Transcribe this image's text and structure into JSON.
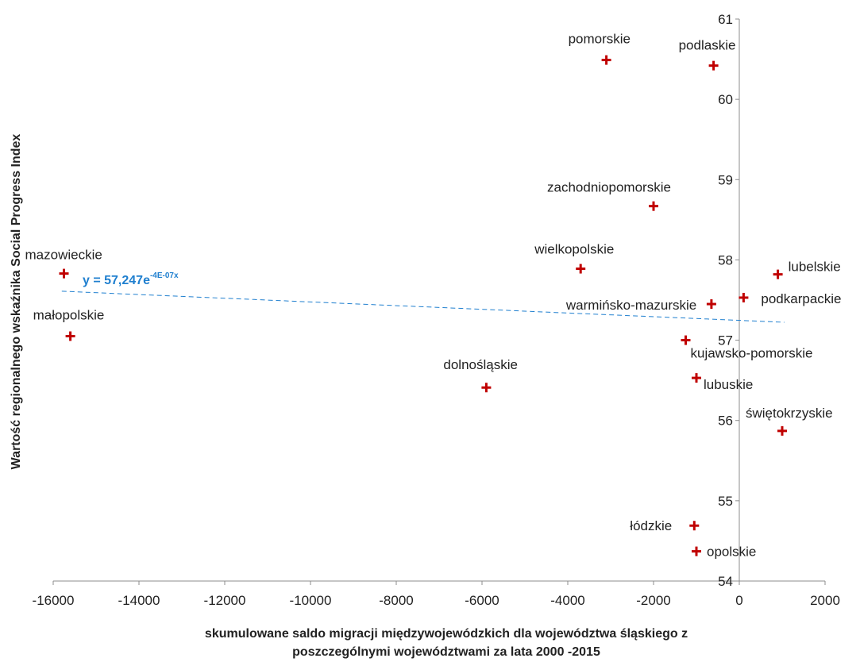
{
  "chart_data": {
    "type": "scatter",
    "title": "",
    "xlabel_lines": [
      "skumulowane saldo migracji międzywojewódzkich dla województwa śląskiego z",
      "poszczególnymi województwami za lata 2000 -2015"
    ],
    "ylabel": "Wartość regionalnego wskaźnika Social Progress Index",
    "xlim": [
      -16000,
      2000
    ],
    "ylim": [
      54,
      61
    ],
    "x_ticks": [
      "-16000",
      "-14000",
      "-12000",
      "-10000",
      "-8000",
      "-6000",
      "-4000",
      "-2000",
      "0",
      "2000"
    ],
    "y_ticks": [
      "54",
      "55",
      "56",
      "57",
      "58",
      "59",
      "60",
      "61"
    ],
    "points": [
      {
        "label": "mazowieckie",
        "x": -15750,
        "y": 57.83
      },
      {
        "label": "małopolskie",
        "x": -15600,
        "y": 57.05
      },
      {
        "label": "dolnośląskie",
        "x": -5900,
        "y": 56.41
      },
      {
        "label": "wielkopolskie",
        "x": -3700,
        "y": 57.89
      },
      {
        "label": "pomorskie",
        "x": -3100,
        "y": 60.49
      },
      {
        "label": "zachodniopomorskie",
        "x": -2000,
        "y": 58.67
      },
      {
        "label": "kujawsko-pomorskie",
        "x": -1250,
        "y": 57.0
      },
      {
        "label": "podlaskie",
        "x": -600,
        "y": 60.42
      },
      {
        "label": "warmińsko-mazurskie",
        "x": -650,
        "y": 57.45
      },
      {
        "label": "lubuskie",
        "x": -1000,
        "y": 56.53
      },
      {
        "label": "łódzkie",
        "x": -1050,
        "y": 54.69
      },
      {
        "label": "opolskie",
        "x": -1000,
        "y": 54.37
      },
      {
        "label": "podkarpackie",
        "x": 100,
        "y": 57.53
      },
      {
        "label": "lubelskie",
        "x": 900,
        "y": 57.82
      },
      {
        "label": "świętokrzyskie",
        "x": 1000,
        "y": 55.87
      }
    ],
    "trendline": {
      "type": "exponential",
      "a": 57.247,
      "b": -4e-07,
      "x_range": [
        -15800,
        1050
      ],
      "equation_main": "y = 57,247e",
      "equation_exp": "-4E-07x",
      "color": "#1f7fcf"
    },
    "marker_color": "#c00000",
    "grid": false
  }
}
